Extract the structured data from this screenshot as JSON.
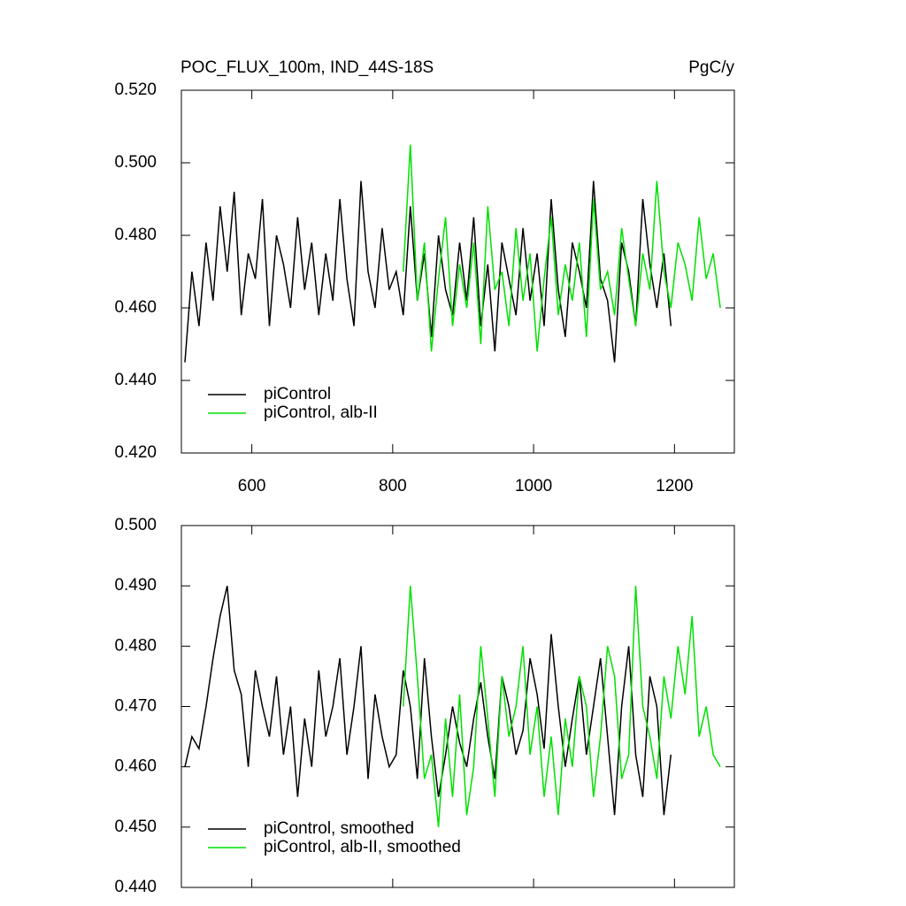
{
  "chart_data": [
    {
      "type": "line",
      "title": "POC_FLUX_100m, IND_44S-18S",
      "units": "PgC/y",
      "xlim": [
        500,
        1285
      ],
      "xticks": [
        600,
        800,
        1000,
        1200
      ],
      "xtick_labels": true,
      "ylim": [
        0.42,
        0.52
      ],
      "yticks": [
        {
          "value": 0.42,
          "label": "0.420"
        },
        {
          "value": 0.44,
          "label": "0.440"
        },
        {
          "value": 0.46,
          "label": "0.460"
        },
        {
          "value": 0.48,
          "label": "0.480"
        },
        {
          "value": 0.5,
          "label": "0.500"
        },
        {
          "value": 0.52,
          "label": "0.520"
        }
      ],
      "legend": "lower left",
      "series": [
        {
          "name": "piControl",
          "color": "#000000",
          "x": [
            505,
            515,
            525,
            535,
            545,
            555,
            565,
            575,
            585,
            595,
            605,
            615,
            625,
            635,
            645,
            655,
            665,
            675,
            685,
            695,
            705,
            715,
            725,
            735,
            745,
            755,
            765,
            775,
            785,
            795,
            805,
            815,
            825,
            835,
            845,
            855,
            865,
            875,
            885,
            895,
            905,
            915,
            925,
            935,
            945,
            955,
            965,
            975,
            985,
            995,
            1005,
            1015,
            1025,
            1035,
            1045,
            1055,
            1065,
            1075,
            1085,
            1095,
            1105,
            1115,
            1125,
            1135,
            1145,
            1155,
            1165,
            1175,
            1185,
            1195
          ],
          "values": [
            0.445,
            0.47,
            0.455,
            0.478,
            0.462,
            0.488,
            0.47,
            0.492,
            0.458,
            0.475,
            0.468,
            0.49,
            0.455,
            0.48,
            0.472,
            0.46,
            0.485,
            0.465,
            0.478,
            0.458,
            0.475,
            0.462,
            0.49,
            0.468,
            0.455,
            0.495,
            0.47,
            0.46,
            0.482,
            0.465,
            0.47,
            0.458,
            0.488,
            0.462,
            0.475,
            0.452,
            0.48,
            0.465,
            0.458,
            0.478,
            0.462,
            0.485,
            0.455,
            0.472,
            0.448,
            0.478,
            0.468,
            0.458,
            0.482,
            0.462,
            0.475,
            0.455,
            0.49,
            0.465,
            0.452,
            0.478,
            0.47,
            0.46,
            0.495,
            0.468,
            0.462,
            0.445,
            0.478,
            0.47,
            0.455,
            0.49,
            0.472,
            0.46,
            0.475,
            0.455
          ]
        },
        {
          "name": "piControl, alb-II",
          "color": "#00e000",
          "x": [
            815,
            825,
            835,
            845,
            855,
            865,
            875,
            885,
            895,
            905,
            915,
            925,
            935,
            945,
            955,
            965,
            975,
            985,
            995,
            1005,
            1015,
            1025,
            1035,
            1045,
            1055,
            1065,
            1075,
            1085,
            1095,
            1105,
            1115,
            1125,
            1135,
            1145,
            1155,
            1165,
            1175,
            1185,
            1195,
            1205,
            1215,
            1225,
            1235,
            1245,
            1255,
            1265
          ],
          "values": [
            0.47,
            0.505,
            0.462,
            0.478,
            0.448,
            0.468,
            0.485,
            0.455,
            0.472,
            0.46,
            0.478,
            0.45,
            0.488,
            0.465,
            0.47,
            0.455,
            0.482,
            0.462,
            0.475,
            0.448,
            0.468,
            0.485,
            0.458,
            0.472,
            0.462,
            0.478,
            0.452,
            0.49,
            0.465,
            0.47,
            0.458,
            0.482,
            0.468,
            0.455,
            0.475,
            0.465,
            0.495,
            0.47,
            0.46,
            0.478,
            0.472,
            0.462,
            0.485,
            0.468,
            0.475,
            0.46
          ]
        }
      ]
    },
    {
      "type": "line",
      "xlim": [
        500,
        1285
      ],
      "xticks": [
        600,
        800,
        1000,
        1200
      ],
      "xtick_labels": false,
      "ylim": [
        0.44,
        0.5
      ],
      "yticks": [
        {
          "value": 0.44,
          "label": "0.440"
        },
        {
          "value": 0.45,
          "label": "0.450"
        },
        {
          "value": 0.46,
          "label": "0.460"
        },
        {
          "value": 0.47,
          "label": "0.470"
        },
        {
          "value": 0.48,
          "label": "0.480"
        },
        {
          "value": 0.49,
          "label": "0.490"
        },
        {
          "value": 0.5,
          "label": "0.500"
        }
      ],
      "legend": "lower left",
      "series": [
        {
          "name": "piControl, smoothed",
          "color": "#000000",
          "x": [
            505,
            515,
            525,
            535,
            545,
            555,
            565,
            575,
            585,
            595,
            605,
            615,
            625,
            635,
            645,
            655,
            665,
            675,
            685,
            695,
            705,
            715,
            725,
            735,
            745,
            755,
            765,
            775,
            785,
            795,
            805,
            815,
            825,
            835,
            845,
            855,
            865,
            875,
            885,
            895,
            905,
            915,
            925,
            935,
            945,
            955,
            965,
            975,
            985,
            995,
            1005,
            1015,
            1025,
            1035,
            1045,
            1055,
            1065,
            1075,
            1085,
            1095,
            1105,
            1115,
            1125,
            1135,
            1145,
            1155,
            1165,
            1175,
            1185,
            1195
          ],
          "values": [
            0.46,
            0.465,
            0.463,
            0.47,
            0.478,
            0.485,
            0.49,
            0.476,
            0.472,
            0.46,
            0.476,
            0.47,
            0.465,
            0.475,
            0.462,
            0.47,
            0.455,
            0.468,
            0.46,
            0.476,
            0.465,
            0.47,
            0.478,
            0.462,
            0.47,
            0.48,
            0.458,
            0.472,
            0.465,
            0.46,
            0.462,
            0.476,
            0.47,
            0.458,
            0.478,
            0.465,
            0.455,
            0.462,
            0.47,
            0.464,
            0.46,
            0.468,
            0.474,
            0.465,
            0.458,
            0.475,
            0.47,
            0.462,
            0.466,
            0.478,
            0.472,
            0.463,
            0.482,
            0.47,
            0.46,
            0.468,
            0.475,
            0.462,
            0.47,
            0.478,
            0.465,
            0.452,
            0.47,
            0.48,
            0.462,
            0.455,
            0.475,
            0.47,
            0.452,
            0.462
          ]
        },
        {
          "name": "piControl, alb-II, smoothed",
          "color": "#00e000",
          "x": [
            815,
            825,
            835,
            845,
            855,
            865,
            875,
            885,
            895,
            905,
            915,
            925,
            935,
            945,
            955,
            965,
            975,
            985,
            995,
            1005,
            1015,
            1025,
            1035,
            1045,
            1055,
            1065,
            1075,
            1085,
            1095,
            1105,
            1115,
            1125,
            1135,
            1145,
            1155,
            1165,
            1175,
            1185,
            1195,
            1205,
            1215,
            1225,
            1235,
            1245,
            1255,
            1265
          ],
          "values": [
            0.47,
            0.49,
            0.475,
            0.458,
            0.462,
            0.45,
            0.468,
            0.455,
            0.472,
            0.452,
            0.46,
            0.48,
            0.468,
            0.455,
            0.475,
            0.465,
            0.47,
            0.48,
            0.462,
            0.47,
            0.455,
            0.465,
            0.452,
            0.468,
            0.46,
            0.475,
            0.47,
            0.455,
            0.465,
            0.48,
            0.475,
            0.458,
            0.462,
            0.49,
            0.47,
            0.465,
            0.458,
            0.475,
            0.468,
            0.48,
            0.472,
            0.485,
            0.465,
            0.47,
            0.462,
            0.46
          ]
        }
      ]
    }
  ]
}
